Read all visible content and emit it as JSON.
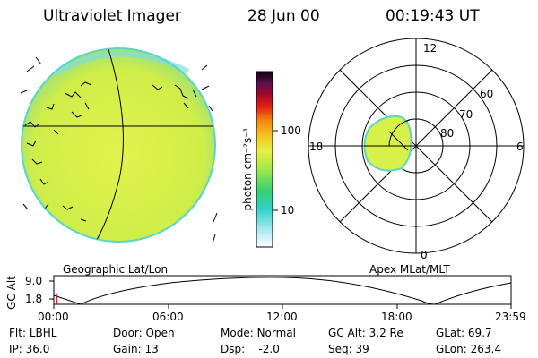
{
  "header": {
    "instrument": "Ultraviolet Imager",
    "date": "28 Jun 00",
    "time": "00:19:43 UT"
  },
  "colorbar": {
    "unit_label": "photon cm⁻²s⁻¹",
    "ticks": [
      "100",
      "10"
    ]
  },
  "left_panel": {
    "caption": "Geographic Lat/Lon"
  },
  "right_panel": {
    "caption": "Apex MLat/MLT",
    "mlt_labels": {
      "top": "12",
      "right": "6",
      "bottom": "0",
      "left": "18"
    },
    "lat_labels": [
      "60",
      "70",
      "80"
    ]
  },
  "altitude_plot": {
    "ylabel": "GC Alt",
    "yticks": [
      "9.0",
      "1.8"
    ],
    "xticks": [
      "00:00",
      "06:00",
      "12:00",
      "18:00",
      "23:59"
    ]
  },
  "info": {
    "row1": [
      {
        "label": "Flt:",
        "value": "LBHL"
      },
      {
        "label": "Door:",
        "value": "Open"
      },
      {
        "label": "Mode:",
        "value": "Normal"
      },
      {
        "label": "GC Alt:",
        "value": "3.2 Re"
      },
      {
        "label": "GLat:",
        "value": "69.7"
      }
    ],
    "row2": [
      {
        "label": "IP:",
        "value": "36.0"
      },
      {
        "label": "Gain:",
        "value": "13"
      },
      {
        "label": "Dsp:",
        "value": "-2.0"
      },
      {
        "label": "Seq:",
        "value": "39"
      },
      {
        "label": "GLon:",
        "value": "263.4"
      }
    ]
  },
  "colors": {
    "earth_fill": "#d6f04a",
    "earth_limb": "#5ad6c8",
    "line": "#000000"
  }
}
